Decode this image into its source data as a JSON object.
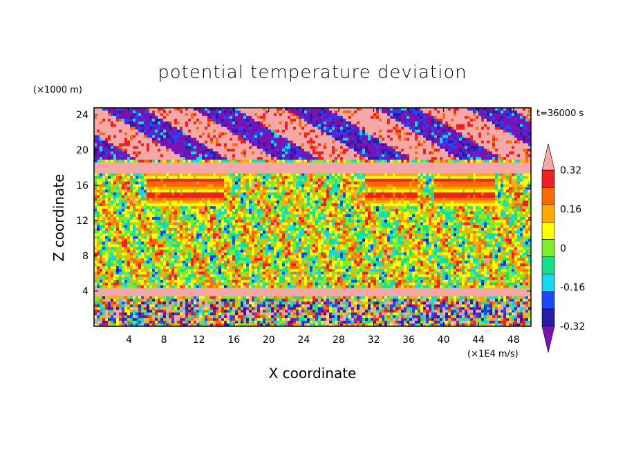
{
  "chart_data": {
    "type": "heatmap",
    "title": "potential temperature deviation",
    "xlabel": "X coordinate",
    "ylabel": "Z coordinate",
    "x_unit": "(×1E4 m/s)",
    "y_unit": "(×1000 m)",
    "time_label": "t=36000 s",
    "xlim": [
      0,
      50
    ],
    "ylim": [
      0,
      24.8
    ],
    "x_ticks": [
      4,
      8,
      12,
      16,
      20,
      24,
      28,
      32,
      36,
      40,
      44,
      48
    ],
    "y_ticks": [
      4,
      8,
      12,
      16,
      20,
      24
    ],
    "colorbar": {
      "levels": [
        -0.4,
        -0.32,
        -0.24,
        -0.16,
        -0.08,
        0,
        0.08,
        0.16,
        0.24,
        0.32,
        0.4
      ],
      "labels": [
        "0.32",
        "0.16",
        "0",
        "-0.16",
        "-0.32"
      ],
      "label_values": [
        0.32,
        0.16,
        0,
        -0.16,
        -0.32
      ],
      "colors": [
        "#7a12b0",
        "#2a1aa8",
        "#1e46ff",
        "#18d8f0",
        "#12e08a",
        "#7af02a",
        "#ffff00",
        "#ffaa00",
        "#ff6a00",
        "#f02020",
        "#f5a8a8"
      ],
      "extend": "both"
    }
  }
}
